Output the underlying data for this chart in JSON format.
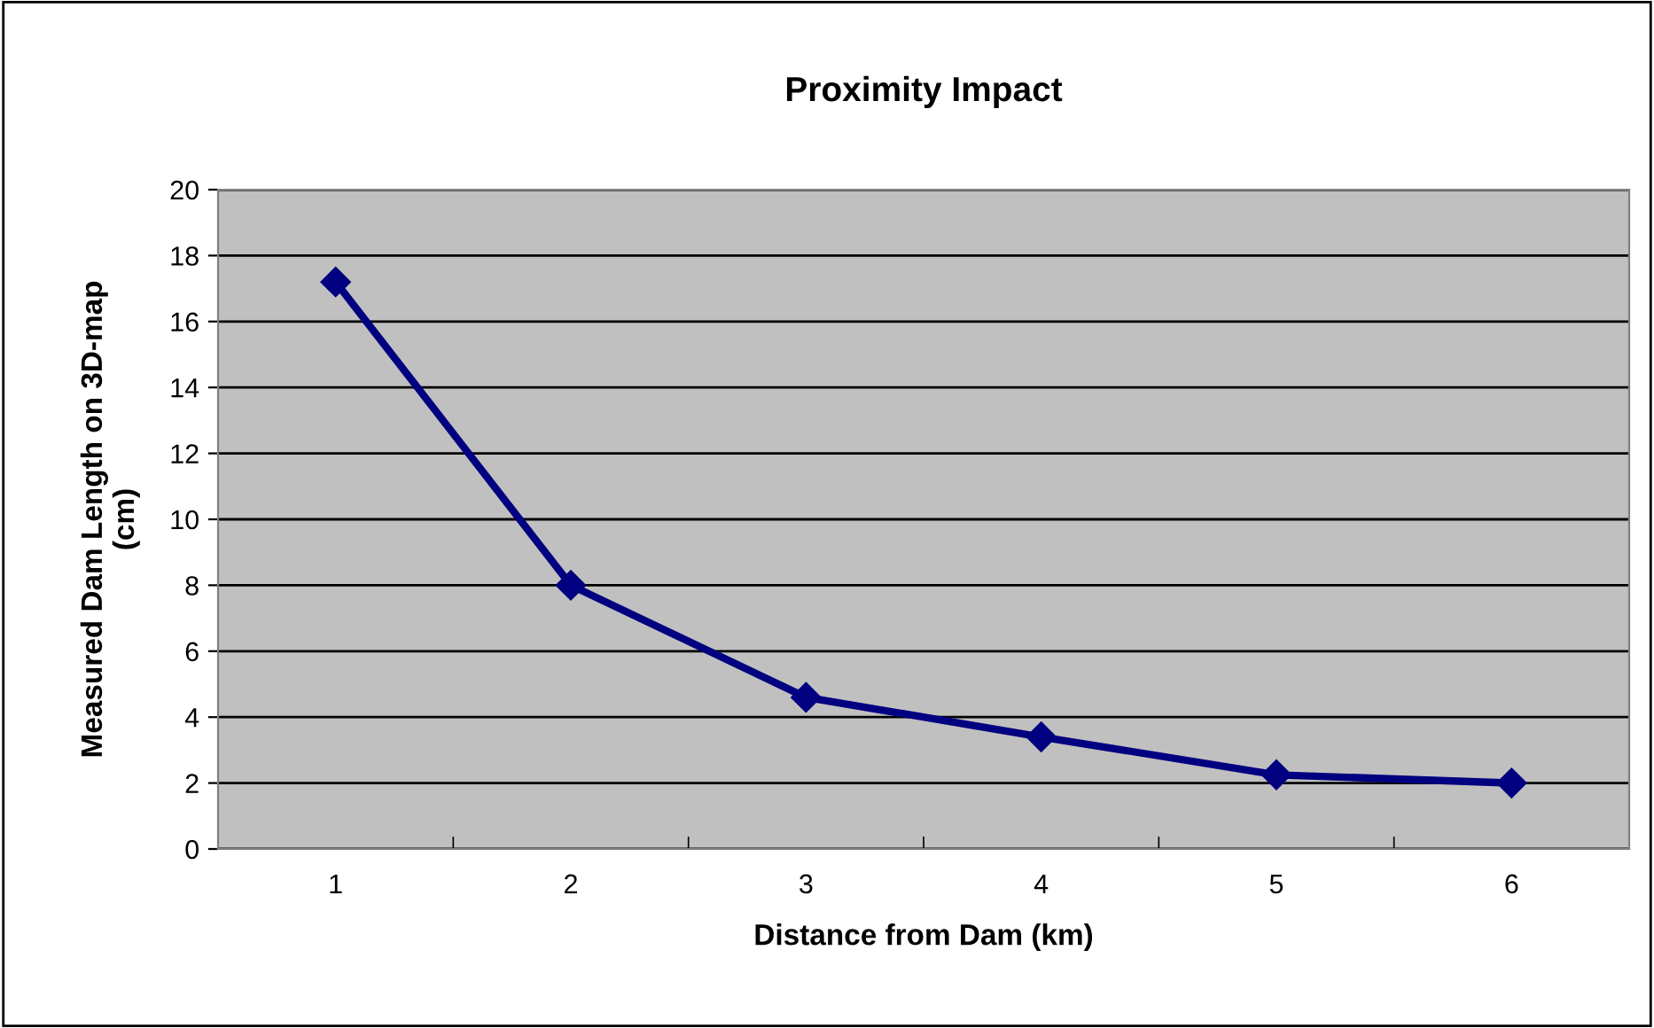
{
  "chart_data": {
    "type": "line",
    "title": "Proximity Impact",
    "xlabel": "Distance from Dam (km)",
    "ylabel": "Measured Dam Length on 3D-map\n(cm)",
    "categories": [
      "1",
      "2",
      "3",
      "4",
      "5",
      "6"
    ],
    "series": [
      {
        "color": "#000080",
        "values": [
          17.2,
          8.0,
          4.6,
          3.4,
          2.25,
          2.0
        ]
      }
    ],
    "ylim": [
      0,
      20
    ],
    "yticks": [
      0,
      2,
      4,
      6,
      8,
      10,
      12,
      14,
      16,
      18,
      20
    ],
    "grid": "y",
    "marker": "diamond",
    "line_style": "solid"
  }
}
